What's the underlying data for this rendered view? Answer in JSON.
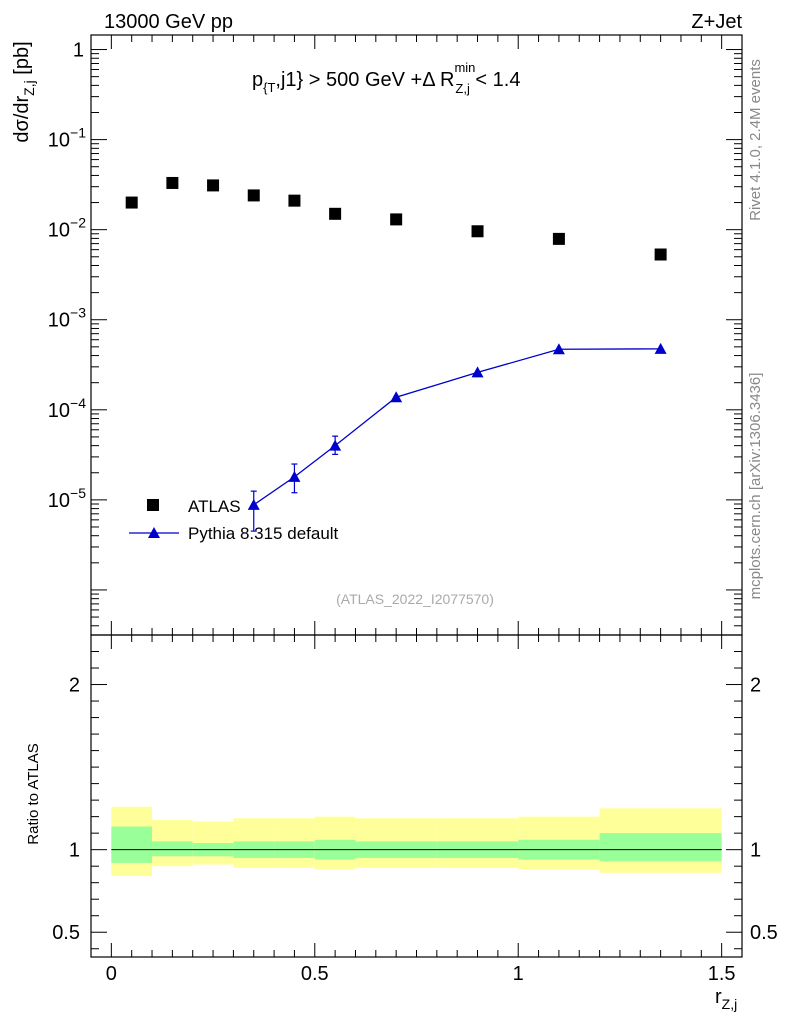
{
  "header": {
    "left": "13000 GeV pp",
    "right": "Z+Jet"
  },
  "cut_label": {
    "p": "p",
    "p_sub": "{T",
    "mid": ",j1} > 500 GeV +Δ R",
    "r_sup": "min",
    "r_sub": "Z,j",
    "tail": " < 1.4"
  },
  "side_labels": {
    "rivet": "Rivet 4.1.0,  2.4M events",
    "mcplots": "mcplots.cern.ch [arXiv:1306.3436]"
  },
  "analysis_id": "(ATLAS_2022_I2077570)",
  "colors": {
    "mc": "#0000cc",
    "band_inner": "#99ff99",
    "band_outer": "#ffff99",
    "data": "#000000"
  },
  "chart_data": [
    {
      "type": "scatter",
      "panel": "main",
      "yscale": "log",
      "xlim": [
        -0.05,
        1.55
      ],
      "ylim": [
        3.16e-07,
        1.45
      ],
      "y_axis_label": {
        "main": "dσ/dr",
        "sub": "Z,j",
        "unit": " [pb]"
      },
      "y_ticks": [
        {
          "value": 1,
          "base": "1",
          "exp": ""
        },
        {
          "value": 0.1,
          "base": "10",
          "exp": "−1"
        },
        {
          "value": 0.01,
          "base": "10",
          "exp": "−2"
        },
        {
          "value": 0.001,
          "base": "10",
          "exp": "−3"
        },
        {
          "value": 0.0001,
          "base": "10",
          "exp": "−4"
        },
        {
          "value": 1e-05,
          "base": "10",
          "exp": "−5"
        }
      ],
      "legend": [
        {
          "label": "ATLAS",
          "marker": "square"
        },
        {
          "label": "Pythia 8.315 default",
          "marker": "triangle"
        }
      ],
      "series": [
        {
          "name": "ATLAS",
          "marker": "square",
          "points": [
            {
              "x": 0.05,
              "y": 0.02
            },
            {
              "x": 0.15,
              "y": 0.033
            },
            {
              "x": 0.25,
              "y": 0.031
            },
            {
              "x": 0.35,
              "y": 0.024
            },
            {
              "x": 0.45,
              "y": 0.021
            },
            {
              "x": 0.55,
              "y": 0.015
            },
            {
              "x": 0.7,
              "y": 0.013
            },
            {
              "x": 0.9,
              "y": 0.0096
            },
            {
              "x": 1.1,
              "y": 0.0079
            },
            {
              "x": 1.35,
              "y": 0.0053
            }
          ]
        },
        {
          "name": "Pythia 8.315 default",
          "marker": "triangle",
          "points": [
            {
              "x": 0.35,
              "y": 8.8e-06,
              "ylo": 4.5e-06,
              "yhi": 1.25e-05
            },
            {
              "x": 0.45,
              "y": 1.8e-05,
              "ylo": 1.2e-05,
              "yhi": 2.5e-05
            },
            {
              "x": 0.55,
              "y": 4e-05,
              "ylo": 3.2e-05,
              "yhi": 5.1e-05
            },
            {
              "x": 0.7,
              "y": 0.000138
            },
            {
              "x": 0.9,
              "y": 0.00026
            },
            {
              "x": 1.1,
              "y": 0.00047
            },
            {
              "x": 1.35,
              "y": 0.000475
            }
          ]
        }
      ]
    },
    {
      "type": "area",
      "panel": "ratio",
      "xlim": [
        -0.05,
        1.55
      ],
      "ylim": [
        0.35,
        2.3
      ],
      "x_axis_label": {
        "main": "r",
        "sub": "Z,j"
      },
      "y_axis_label": "Ratio to ATLAS",
      "x_ticks": [
        {
          "value": 0,
          "label": "0"
        },
        {
          "value": 0.5,
          "label": "0.5"
        },
        {
          "value": 1,
          "label": "1"
        },
        {
          "value": 1.5,
          "label": "1.5"
        }
      ],
      "y_ticks": [
        {
          "value": 2,
          "label": "2"
        },
        {
          "value": 1,
          "label": "1"
        },
        {
          "value": 0.5,
          "label": "0.5"
        }
      ],
      "reference_line": 1,
      "bands": [
        {
          "x0": 0.0,
          "x1": 0.1,
          "inner": [
            0.92,
            1.14
          ],
          "outer": [
            0.84,
            1.26
          ]
        },
        {
          "x0": 0.1,
          "x1": 0.2,
          "inner": [
            0.96,
            1.05
          ],
          "outer": [
            0.9,
            1.18
          ]
        },
        {
          "x0": 0.2,
          "x1": 0.3,
          "inner": [
            0.96,
            1.04
          ],
          "outer": [
            0.91,
            1.17
          ]
        },
        {
          "x0": 0.3,
          "x1": 0.4,
          "inner": [
            0.95,
            1.05
          ],
          "outer": [
            0.89,
            1.19
          ]
        },
        {
          "x0": 0.4,
          "x1": 0.5,
          "inner": [
            0.95,
            1.05
          ],
          "outer": [
            0.89,
            1.19
          ]
        },
        {
          "x0": 0.5,
          "x1": 0.6,
          "inner": [
            0.94,
            1.06
          ],
          "outer": [
            0.88,
            1.2
          ]
        },
        {
          "x0": 0.6,
          "x1": 0.8,
          "inner": [
            0.95,
            1.05
          ],
          "outer": [
            0.89,
            1.19
          ]
        },
        {
          "x0": 0.8,
          "x1": 1.0,
          "inner": [
            0.95,
            1.05
          ],
          "outer": [
            0.89,
            1.19
          ]
        },
        {
          "x0": 1.0,
          "x1": 1.2,
          "inner": [
            0.94,
            1.06
          ],
          "outer": [
            0.88,
            1.2
          ]
        },
        {
          "x0": 1.2,
          "x1": 1.5,
          "inner": [
            0.93,
            1.1
          ],
          "outer": [
            0.86,
            1.25
          ]
        }
      ]
    }
  ]
}
